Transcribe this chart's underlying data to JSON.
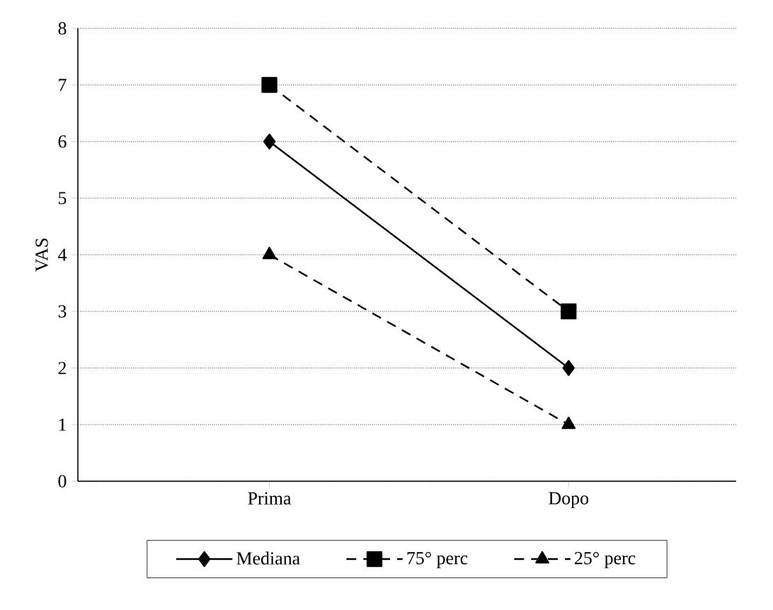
{
  "chart_data": {
    "type": "line",
    "ylabel": "VAS",
    "categories": [
      "Prima",
      "Dopo"
    ],
    "ylim": [
      0,
      8
    ],
    "yticks": [
      0,
      1,
      2,
      3,
      4,
      5,
      6,
      7,
      8
    ],
    "grid": "y",
    "legend": "bottom",
    "series": [
      {
        "name": "Mediana",
        "color": "#000000",
        "values": [
          6,
          2
        ],
        "marker": "diamond",
        "line_style": "solid"
      },
      {
        "name": "75° perc",
        "color": "#000000",
        "values": [
          7,
          3
        ],
        "marker": "square",
        "line_style": "dashed"
      },
      {
        "name": "25° perc",
        "color": "#000000",
        "values": [
          4,
          1
        ],
        "marker": "triangle",
        "line_style": "dashed"
      }
    ]
  }
}
